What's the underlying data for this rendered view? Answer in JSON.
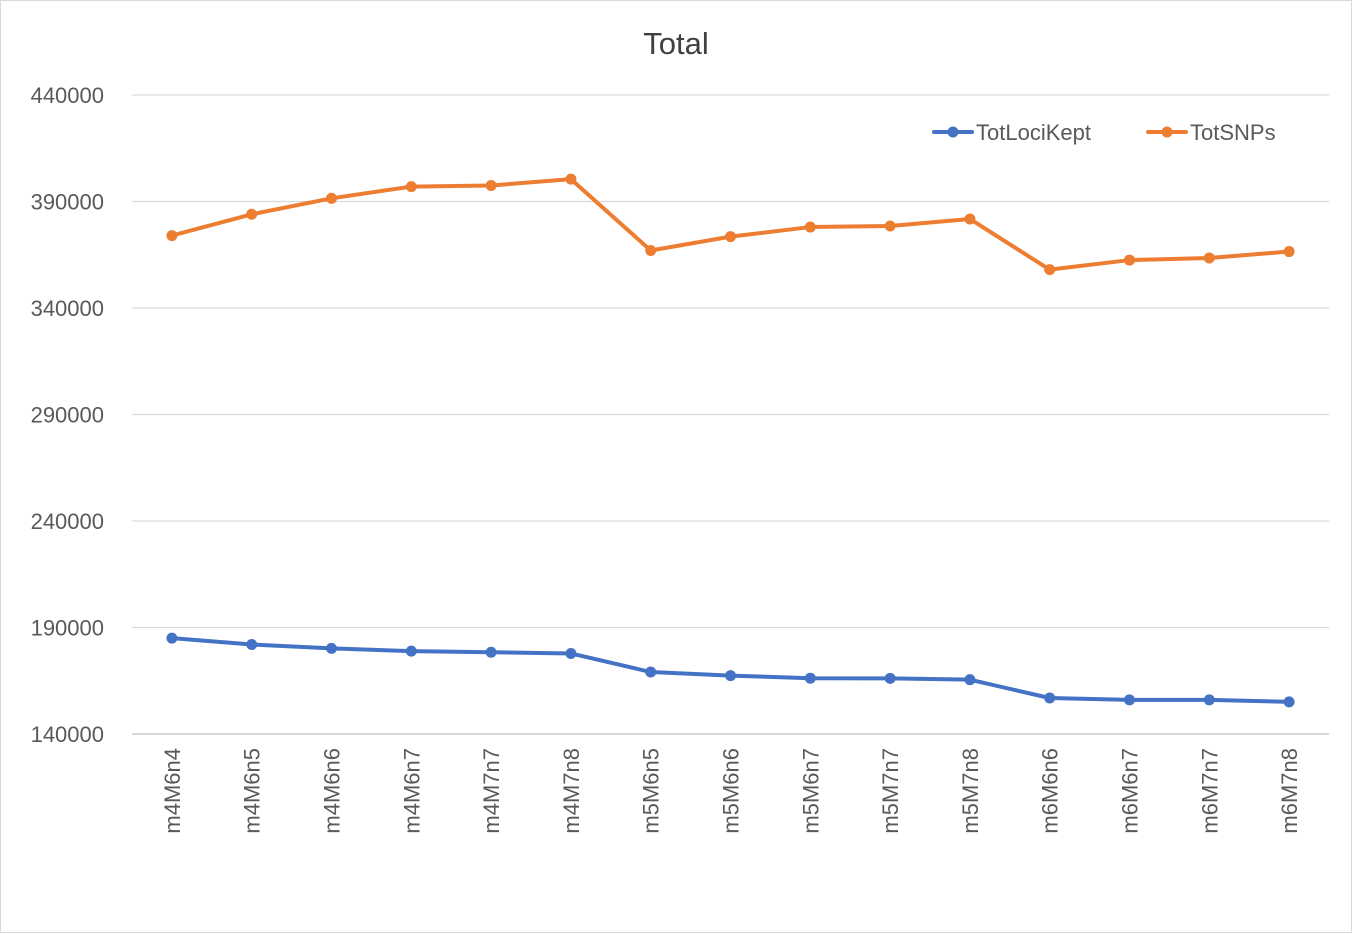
{
  "chart_data": {
    "type": "line",
    "title": "Total",
    "xlabel": "",
    "ylabel": "",
    "ylim": [
      140000,
      440000
    ],
    "yticks": [
      "140000",
      "190000",
      "240000",
      "290000",
      "340000",
      "390000",
      "440000"
    ],
    "grid": true,
    "legend_position": "top-right",
    "categories": [
      "m4M6n4",
      "m4M6n5",
      "m4M6n6",
      "m4M6n7",
      "m4M7n7",
      "m4M7n8",
      "m5M6n5",
      "m5M6n6",
      "m5M6n7",
      "m5M7n7",
      "m5M7n8",
      "m6M6n6",
      "m6M6n7",
      "m6M7n7",
      "m6M7n8"
    ],
    "series": [
      {
        "name": "TotLociKept",
        "color": "#4472c4",
        "values": [
          185000,
          182000,
          180200,
          178900,
          178400,
          177800,
          169100,
          167400,
          166200,
          166100,
          165500,
          156900,
          156000,
          156000,
          155100
        ]
      },
      {
        "name": "TotSNPs",
        "color": "#ed7d31",
        "values": [
          374000,
          384000,
          391500,
          397000,
          397500,
          400500,
          367000,
          373500,
          378000,
          378500,
          381800,
          358000,
          362500,
          363500,
          366500
        ]
      }
    ]
  }
}
